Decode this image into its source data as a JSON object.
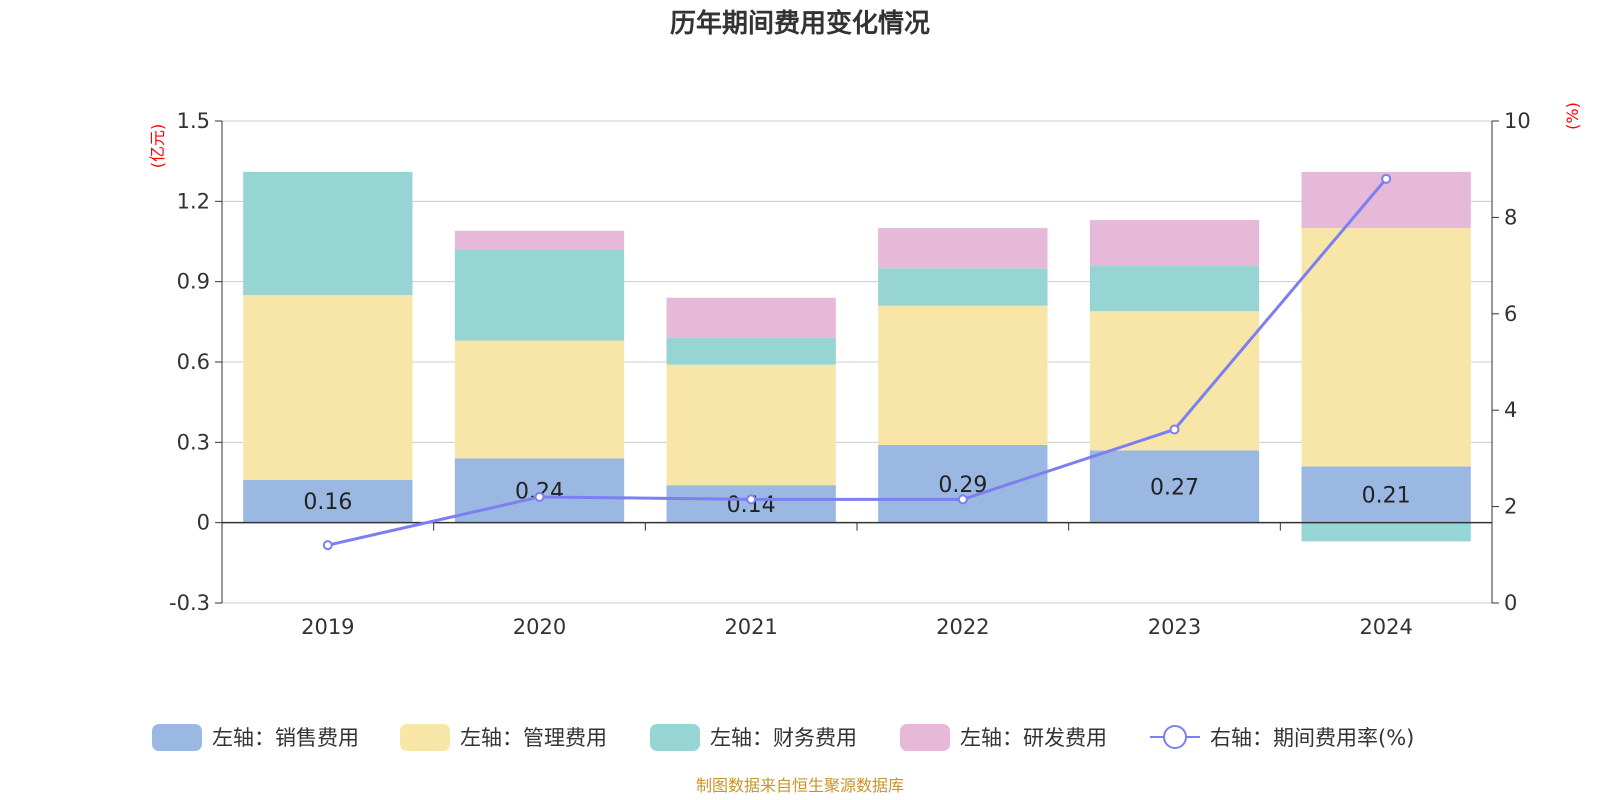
{
  "chart_data": {
    "type": "bar",
    "stacked": true,
    "title": "历年期间费用变化情况",
    "categories": [
      "2019",
      "2020",
      "2021",
      "2022",
      "2023",
      "2024"
    ],
    "left_axis": {
      "unit": "(亿元)",
      "ylim": [
        -0.3,
        1.5
      ],
      "ticks": [
        -0.3,
        0,
        0.3,
        0.6,
        0.9,
        1.2,
        1.5
      ],
      "tick_labels": [
        "-0.3",
        "0",
        "0.3",
        "0.6",
        "0.9",
        "1.2",
        "1.5"
      ]
    },
    "right_axis": {
      "unit": "(%)",
      "ylim": [
        0,
        10
      ],
      "ticks": [
        0,
        2,
        4,
        6,
        8,
        10
      ],
      "tick_labels": [
        "0",
        "2",
        "4",
        "6",
        "8",
        "10"
      ]
    },
    "series": [
      {
        "name": "左轴：销售费用",
        "axis": "left",
        "kind": "bar",
        "color": "#9bb8e2",
        "values": [
          0.16,
          0.24,
          0.14,
          0.29,
          0.27,
          0.21
        ],
        "labels": [
          "0.16",
          "0.24",
          "0.14",
          "0.29",
          "0.27",
          "0.21"
        ]
      },
      {
        "name": "左轴：管理费用",
        "axis": "left",
        "kind": "bar",
        "color": "#f8e6a8",
        "values": [
          0.69,
          0.44,
          0.45,
          0.52,
          0.52,
          0.89
        ]
      },
      {
        "name": "左轴：财务费用",
        "axis": "left",
        "kind": "bar",
        "color": "#97d4d4",
        "values": [
          0.46,
          0.34,
          0.1,
          0.14,
          0.17,
          -0.07
        ]
      },
      {
        "name": "左轴：研发费用",
        "axis": "left",
        "kind": "bar",
        "color": "#e6b9d8",
        "values": [
          0.0,
          0.07,
          0.15,
          0.15,
          0.17,
          0.21
        ]
      },
      {
        "name": "右轴：期间费用率(%)",
        "axis": "right",
        "kind": "line",
        "color": "#7b7ff0",
        "values": [
          1.2,
          2.2,
          2.15,
          2.15,
          3.6,
          8.8
        ]
      }
    ],
    "source": "制图数据来自恒生聚源数据库"
  }
}
